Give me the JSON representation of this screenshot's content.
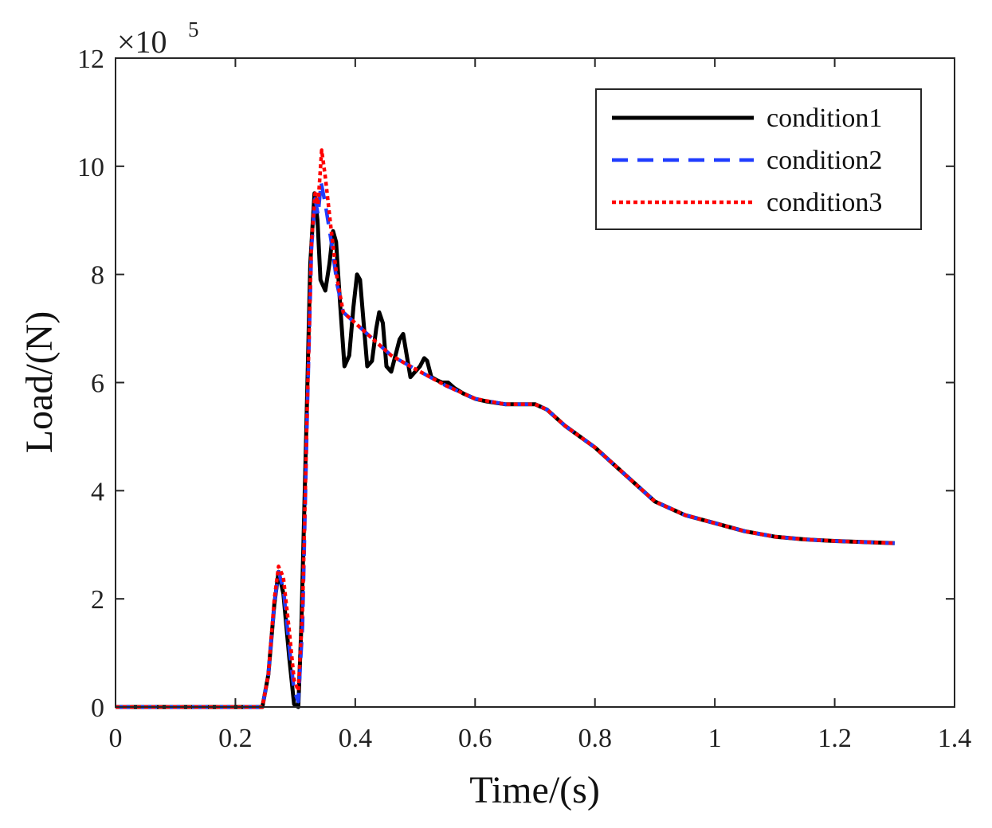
{
  "chart_data": {
    "type": "line",
    "title": "",
    "xlabel": "Time/(s)",
    "ylabel": "Load/(N)",
    "y_exponent_label": {
      "base": "×10",
      "exponent": "5"
    },
    "xlim": [
      0,
      1.4
    ],
    "ylim": [
      0,
      12
    ],
    "xticks": [
      0,
      0.2,
      0.4,
      0.6,
      0.8,
      1,
      1.2,
      1.4
    ],
    "xtick_labels": [
      "0",
      "0.2",
      "0.4",
      "0.6",
      "0.8",
      "1",
      "1.2",
      "1.4"
    ],
    "yticks": [
      0,
      2,
      4,
      6,
      8,
      10,
      12
    ],
    "ytick_labels": [
      "0",
      "2",
      "4",
      "6",
      "8",
      "10",
      "12"
    ],
    "legend_position": "top-right",
    "series": [
      {
        "name": "condition1",
        "color": "#000000",
        "style": "solid",
        "points": [
          [
            0,
            0
          ],
          [
            0.2,
            0
          ],
          [
            0.245,
            0
          ],
          [
            0.255,
            0.6
          ],
          [
            0.265,
            1.9
          ],
          [
            0.272,
            2.5
          ],
          [
            0.28,
            2.1
          ],
          [
            0.29,
            0.9
          ],
          [
            0.298,
            0.05
          ],
          [
            0.305,
            0.0
          ],
          [
            0.31,
            1.5
          ],
          [
            0.318,
            5.0
          ],
          [
            0.325,
            8.2
          ],
          [
            0.332,
            9.5
          ],
          [
            0.337,
            9.0
          ],
          [
            0.342,
            7.9
          ],
          [
            0.35,
            7.7
          ],
          [
            0.357,
            8.2
          ],
          [
            0.363,
            8.8
          ],
          [
            0.368,
            8.6
          ],
          [
            0.375,
            7.4
          ],
          [
            0.382,
            6.3
          ],
          [
            0.39,
            6.5
          ],
          [
            0.397,
            7.4
          ],
          [
            0.403,
            8.0
          ],
          [
            0.408,
            7.9
          ],
          [
            0.414,
            7.1
          ],
          [
            0.42,
            6.3
          ],
          [
            0.428,
            6.4
          ],
          [
            0.435,
            7.0
          ],
          [
            0.44,
            7.3
          ],
          [
            0.446,
            7.1
          ],
          [
            0.452,
            6.3
          ],
          [
            0.46,
            6.2
          ],
          [
            0.467,
            6.5
          ],
          [
            0.474,
            6.8
          ],
          [
            0.48,
            6.9
          ],
          [
            0.486,
            6.5
          ],
          [
            0.492,
            6.1
          ],
          [
            0.5,
            6.2
          ],
          [
            0.508,
            6.3
          ],
          [
            0.515,
            6.45
          ],
          [
            0.52,
            6.4
          ],
          [
            0.527,
            6.1
          ],
          [
            0.535,
            6.05
          ],
          [
            0.545,
            6.0
          ],
          [
            0.555,
            6.0
          ],
          [
            0.565,
            5.9
          ],
          [
            0.58,
            5.8
          ],
          [
            0.6,
            5.7
          ],
          [
            0.62,
            5.65
          ],
          [
            0.65,
            5.6
          ],
          [
            0.68,
            5.6
          ],
          [
            0.7,
            5.6
          ],
          [
            0.72,
            5.5
          ],
          [
            0.75,
            5.2
          ],
          [
            0.8,
            4.8
          ],
          [
            0.85,
            4.3
          ],
          [
            0.9,
            3.8
          ],
          [
            0.95,
            3.55
          ],
          [
            1.0,
            3.4
          ],
          [
            1.05,
            3.25
          ],
          [
            1.1,
            3.15
          ],
          [
            1.15,
            3.1
          ],
          [
            1.2,
            3.07
          ],
          [
            1.25,
            3.05
          ],
          [
            1.3,
            3.03
          ]
        ]
      },
      {
        "name": "condition2",
        "color": "#1f3cff",
        "style": "dashed",
        "points": [
          [
            0,
            0
          ],
          [
            0.2,
            0
          ],
          [
            0.245,
            0
          ],
          [
            0.255,
            0.6
          ],
          [
            0.265,
            1.9
          ],
          [
            0.272,
            2.5
          ],
          [
            0.28,
            2.2
          ],
          [
            0.29,
            1.1
          ],
          [
            0.298,
            0.3
          ],
          [
            0.305,
            0.1
          ],
          [
            0.312,
            1.5
          ],
          [
            0.32,
            5.5
          ],
          [
            0.327,
            8.5
          ],
          [
            0.333,
            9.4
          ],
          [
            0.338,
            9.1
          ],
          [
            0.343,
            9.7
          ],
          [
            0.35,
            9.3
          ],
          [
            0.36,
            8.6
          ],
          [
            0.37,
            7.8
          ],
          [
            0.38,
            7.3
          ],
          [
            0.4,
            7.1
          ],
          [
            0.43,
            6.8
          ],
          [
            0.46,
            6.5
          ],
          [
            0.5,
            6.25
          ],
          [
            0.55,
            5.95
          ],
          [
            0.6,
            5.7
          ],
          [
            0.65,
            5.6
          ],
          [
            0.7,
            5.6
          ],
          [
            0.72,
            5.5
          ],
          [
            0.75,
            5.2
          ],
          [
            0.8,
            4.8
          ],
          [
            0.85,
            4.3
          ],
          [
            0.9,
            3.8
          ],
          [
            0.95,
            3.55
          ],
          [
            1.0,
            3.4
          ],
          [
            1.05,
            3.25
          ],
          [
            1.1,
            3.15
          ],
          [
            1.15,
            3.1
          ],
          [
            1.2,
            3.07
          ],
          [
            1.25,
            3.05
          ],
          [
            1.3,
            3.03
          ]
        ]
      },
      {
        "name": "condition3",
        "color": "#ff0000",
        "style": "dotted",
        "points": [
          [
            0,
            0
          ],
          [
            0.2,
            0
          ],
          [
            0.245,
            0
          ],
          [
            0.255,
            0.6
          ],
          [
            0.265,
            2.0
          ],
          [
            0.272,
            2.6
          ],
          [
            0.28,
            2.4
          ],
          [
            0.29,
            1.4
          ],
          [
            0.298,
            0.5
          ],
          [
            0.305,
            0.3
          ],
          [
            0.312,
            1.8
          ],
          [
            0.32,
            5.6
          ],
          [
            0.327,
            8.6
          ],
          [
            0.333,
            9.5
          ],
          [
            0.338,
            9.3
          ],
          [
            0.344,
            10.3
          ],
          [
            0.35,
            9.8
          ],
          [
            0.36,
            8.8
          ],
          [
            0.37,
            7.9
          ],
          [
            0.38,
            7.3
          ],
          [
            0.4,
            7.1
          ],
          [
            0.43,
            6.8
          ],
          [
            0.46,
            6.5
          ],
          [
            0.5,
            6.25
          ],
          [
            0.55,
            5.95
          ],
          [
            0.6,
            5.7
          ],
          [
            0.65,
            5.6
          ],
          [
            0.7,
            5.6
          ],
          [
            0.72,
            5.5
          ],
          [
            0.75,
            5.2
          ],
          [
            0.8,
            4.8
          ],
          [
            0.85,
            4.3
          ],
          [
            0.9,
            3.8
          ],
          [
            0.95,
            3.55
          ],
          [
            1.0,
            3.4
          ],
          [
            1.05,
            3.25
          ],
          [
            1.1,
            3.15
          ],
          [
            1.15,
            3.1
          ],
          [
            1.2,
            3.07
          ],
          [
            1.25,
            3.05
          ],
          [
            1.3,
            3.03
          ]
        ]
      }
    ]
  }
}
